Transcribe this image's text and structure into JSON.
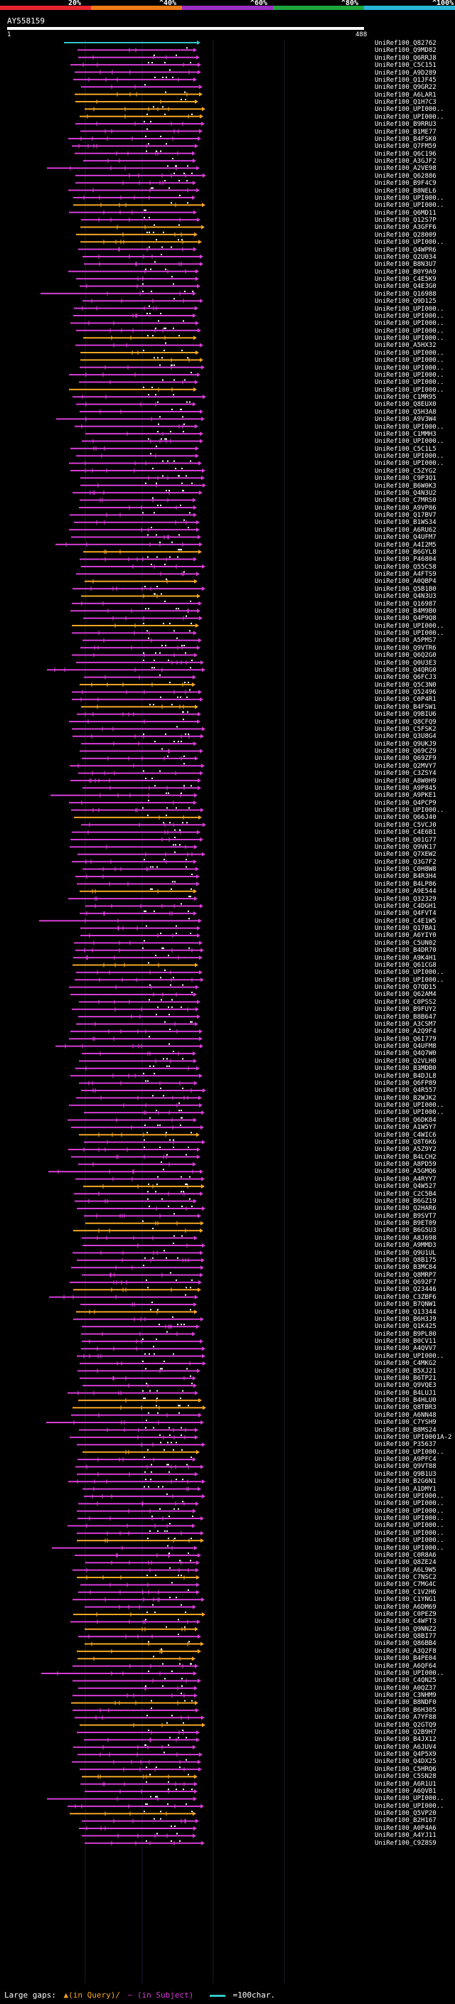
{
  "legend": {
    "segments": [
      {
        "label": "20%",
        "color": "#e8242f"
      },
      {
        "label": "^40%",
        "color": "#f07c14"
      },
      {
        "label": "^60%",
        "color": "#9b2fc4"
      },
      {
        "label": "^80%",
        "color": "#1fa63a"
      },
      {
        "label": "^100%",
        "color": "#27b6d8"
      }
    ]
  },
  "query": {
    "name": "AY558159",
    "start": "1",
    "end": "488"
  },
  "hits": [
    "UniRef100_Q82762",
    "UniRef100_Q9MD82",
    "UniRef100_Q6RRJ8",
    "UniRef100_C5C151",
    "UniRef100_A9D289",
    "UniRef100_Q1JF45",
    "UniRef100_Q9GR22",
    "UniRef100_A6LAR1",
    "UniRef100_Q1H7C3",
    "UniRef100_UPI000..",
    "UniRef100_UPI000..",
    "UniRef100_B9RRU3",
    "UniRef100_B1ME77",
    "UniRef100_B4FSK0",
    "UniRef100_Q7FM59",
    "UniRef100_Q6C196",
    "UniRef100_A3GJF2",
    "UniRef100_A2VE98",
    "UniRef100_Q62886",
    "UniRef100_B9F4C9",
    "UniRef100_B8NEL6",
    "UniRef100_UPI000..",
    "UniRef100_UPI000..",
    "UniRef100_Q6MD11",
    "UniRef100_Q12S7P",
    "UniRef100_A3GFF6",
    "UniRef100_Q28009",
    "UniRef100_UPI000..",
    "UniRef100_Q4WPR6",
    "UniRef100_Q2U034",
    "UniRef100_B8N3U7",
    "UniRef100_B0Y9A9",
    "UniRef100_C4E5K9",
    "UniRef100_Q4E3G0",
    "UniRef100_Q16988",
    "UniRef100_Q9D125",
    "UniRef100_UPI000..",
    "UniRef100_UPI000..",
    "UniRef100_UPI000..",
    "UniRef100_UPI000..",
    "UniRef100_UPI000..",
    "UniRef100_A5HX32",
    "UniRef100_UPI000..",
    "UniRef100_UPI000..",
    "UniRef100_UPI000..",
    "UniRef100_UPI000..",
    "UniRef100_UPI000..",
    "UniRef100_UPI000..",
    "UniRef100_C1MR95",
    "UniRef100_Q8EUX0",
    "UniRef100_Q5H3A8",
    "UniRef100_A9V3W4",
    "UniRef100_UPI000..",
    "UniRef100_C1MMH3",
    "UniRef100_UPI000..",
    "UniRef100_C5C1L5",
    "UniRef100_UPI000..",
    "UniRef100_UPI000..",
    "UniRef100_C5ZYG2",
    "UniRef100_C9P3Q1",
    "UniRef100_B6W0K3",
    "UniRef100_Q4N3U2",
    "UniRef100_C7MRS0",
    "UniRef100_A9VP86",
    "UniRef100_Q17BV7",
    "UniRef100_B1WS34",
    "UniRef100_A6RU62",
    "UniRef100_Q4UFM7",
    "UniRef100_A4I2M5",
    "UniRef100_B6GYL8",
    "UniRef100_P46804",
    "UniRef100_Q55C58",
    "UniRef100_A4FTS9",
    "UniRef100_A0QBP4",
    "UniRef100_Q5B1B0",
    "UniRef100_Q4N3U3",
    "UniRef100_Q16987",
    "UniRef100_B4M9B0",
    "UniRef100_Q4P9Q8",
    "UniRef100_UPI000..",
    "UniRef100_UPI000..",
    "UniRef100_A5PMS7",
    "UniRef100_Q9VTR6",
    "UniRef100_Q6Q2G0",
    "UniRef100_Q0U3E3",
    "UniRef100_Q4QRG0",
    "UniRef100_Q6FCJ3",
    "UniRef100_Q5C3N0",
    "UniRef100_Q52496",
    "UniRef100_C0P4R1",
    "UniRef100_B4FSW1",
    "UniRef100_Q9BIU6",
    "UniRef100_Q8CFQ9",
    "UniRef100_C5FSK2",
    "UniRef100_Q3U8G4",
    "UniRef100_Q9UKJ9",
    "UniRef100_Q69CZ9",
    "UniRef100_Q69ZF9",
    "UniRef100_Q2MVY7",
    "UniRef100_C3ZSY4",
    "UniRef100_A8W0H9",
    "UniRef100_A9P845",
    "UniRef100_A9PKE1",
    "UniRef100_Q4PCP9",
    "UniRef100_UPI000..",
    "UniRef100_Q66J40",
    "UniRef100_C5VCJ0",
    "UniRef100_C4E6B1",
    "UniRef100_Q01G77",
    "UniRef100_Q9VK17",
    "UniRef100_Q7XEW2",
    "UniRef100_Q3G7F2",
    "UniRef100_C0H8W8",
    "UniRef100_B4R3H4",
    "UniRef100_B4LP86",
    "UniRef100_A9E544",
    "UniRef100_Q32329",
    "UniRef100_C4DGH1",
    "UniRef100_Q4FVT4",
    "UniRef100_C4E1W5",
    "UniRef100_Q17BA1",
    "UniRef100_A6YIY0",
    "UniRef100_C5UN02",
    "UniRef100_B4DR70",
    "UniRef100_A9K4H1",
    "UniRef100_Q61CG8",
    "UniRef100_UPI000..",
    "UniRef100_UPI000..",
    "UniRef100_Q7QD15",
    "UniRef100_Q62AM4",
    "UniRef100_C0PSS2",
    "UniRef100_B9FUY2",
    "UniRef100_B8B647",
    "UniRef100_A3CSM7",
    "UniRef100_A2Q9F4",
    "UniRef100_Q6I779",
    "UniRef100_Q4UFM8",
    "UniRef100_Q4Q7W0",
    "UniRef100_Q2VLH0",
    "UniRef100_B3MDB0",
    "UniRef100_B4DJL8",
    "UniRef100_Q6FP89",
    "UniRef100_Q4R557",
    "UniRef100_B2WJK2",
    "UniRef100_UPI000..",
    "UniRef100_UPI000..",
    "UniRef100_Q6DK84",
    "UniRef100_A1W5Y7",
    "UniRef100_C4WIC6",
    "UniRef100_Q8T6K6",
    "UniRef100_A5Z9Y2",
    "UniRef100_B4LCH2",
    "UniRef100_A8PD59",
    "UniRef100_A5GMQ6",
    "UniRef100_A4RYY7",
    "UniRef100_Q4W527",
    "UniRef100_C2C5B4",
    "UniRef100_B6GZ19",
    "UniRef100_Q2HAR6",
    "UniRef100_B9SVT7",
    "UniRef100_B9ET09",
    "UniRef100_B6G5U3",
    "UniRef100_A8J698",
    "UniRef100_A9MMD3",
    "UniRef100_Q9U1UL",
    "UniRef100_Q8B175",
    "UniRef100_B3MC84",
    "UniRef100_Q8MRP7",
    "UniRef100_Q692F7",
    "UniRef100_Q23446",
    "UniRef100_C3ZBF6",
    "UniRef100_B7QNW1",
    "UniRef100_Q13344",
    "UniRef100_B6H3J9",
    "UniRef100_Q1K425",
    "UniRef100_B9PL80",
    "UniRef100_B0CV11",
    "UniRef100_A4QVV7",
    "UniRef100_UPI000..",
    "UniRef100_C4MKG2",
    "UniRef100_B5XJ21",
    "UniRef100_B6TP21",
    "UniRef100_Q9VQE3",
    "UniRef100_B4LUJ1",
    "UniRef100_B4HLU0",
    "UniRef100_Q8TBR3",
    "UniRef100_A6NN48",
    "UniRef100_C7YSH9",
    "UniRef100_B8MS24",
    "UniRef100_UPI0001A-2",
    "UniRef100_P35637",
    "UniRef100_UPI000..",
    "UniRef100_A9PFC4",
    "UniRef100_Q9VT88",
    "UniRef100_Q9B1U3",
    "UniRef100_B2G6N1",
    "UniRef100_A1DMY1",
    "UniRef100_UPI000..",
    "UniRef100_UPI000..",
    "UniRef100_UPI000..",
    "UniRef100_UPI000..",
    "UniRef100_UPI000..",
    "UniRef100_UPI000..",
    "UniRef100_UPI000..",
    "UniRef100_UPI000..",
    "UniRef100_C0R8A6",
    "UniRef100_Q8ZE24",
    "UniRef100_A6L9W5",
    "UniRef100_C7NSC2",
    "UniRef100_C7MG4C",
    "UniRef100_C1V2H6",
    "UniRef100_C1YNG1",
    "UniRef100_A6DM69",
    "UniRef100_C0PEZ9",
    "UniRef100_C4WFT3",
    "UniRef100_Q9NNZ2",
    "UniRef100_Q8BI77",
    "UniRef100_Q86BB4",
    "UniRef100_A3Q2F8",
    "UniRef100_B4PE04",
    "UniRef100_A6QF64",
    "UniRef100_UPI000..",
    "UniRef100_C4QN25",
    "UniRef100_A0QZ37",
    "UniRef100_C3NHM9",
    "UniRef100_B8NDF0",
    "UniRef100_B6H305",
    "UniRef100_A7YF88",
    "UniRef100_Q2GTQ9",
    "UniRef100_Q2B9H7",
    "UniRef100_B4JX12",
    "UniRef100_A6JUV4",
    "UniRef100_Q4P5X9",
    "UniRef100_Q4DX25",
    "UniRef100_C5HRQ6",
    "UniRef100_C5SN28",
    "UniRef100_A6R1U1",
    "UniRef100_A6QVB1",
    "UniRef100_UPI000..",
    "UniRef100_UPI000..",
    "UniRef100_Q5VP20",
    "UniRef100_B2H167",
    "UniRef100_A0P4A6",
    "UniRef100_A4YJ11",
    "UniRef100_C9Z8S9"
  ],
  "footer": {
    "gaps_label": "Large gaps:",
    "query_gap": "▲(in Query)/",
    "subject_gap": "~ (in Subject)",
    "scale_label": "=100char."
  }
}
